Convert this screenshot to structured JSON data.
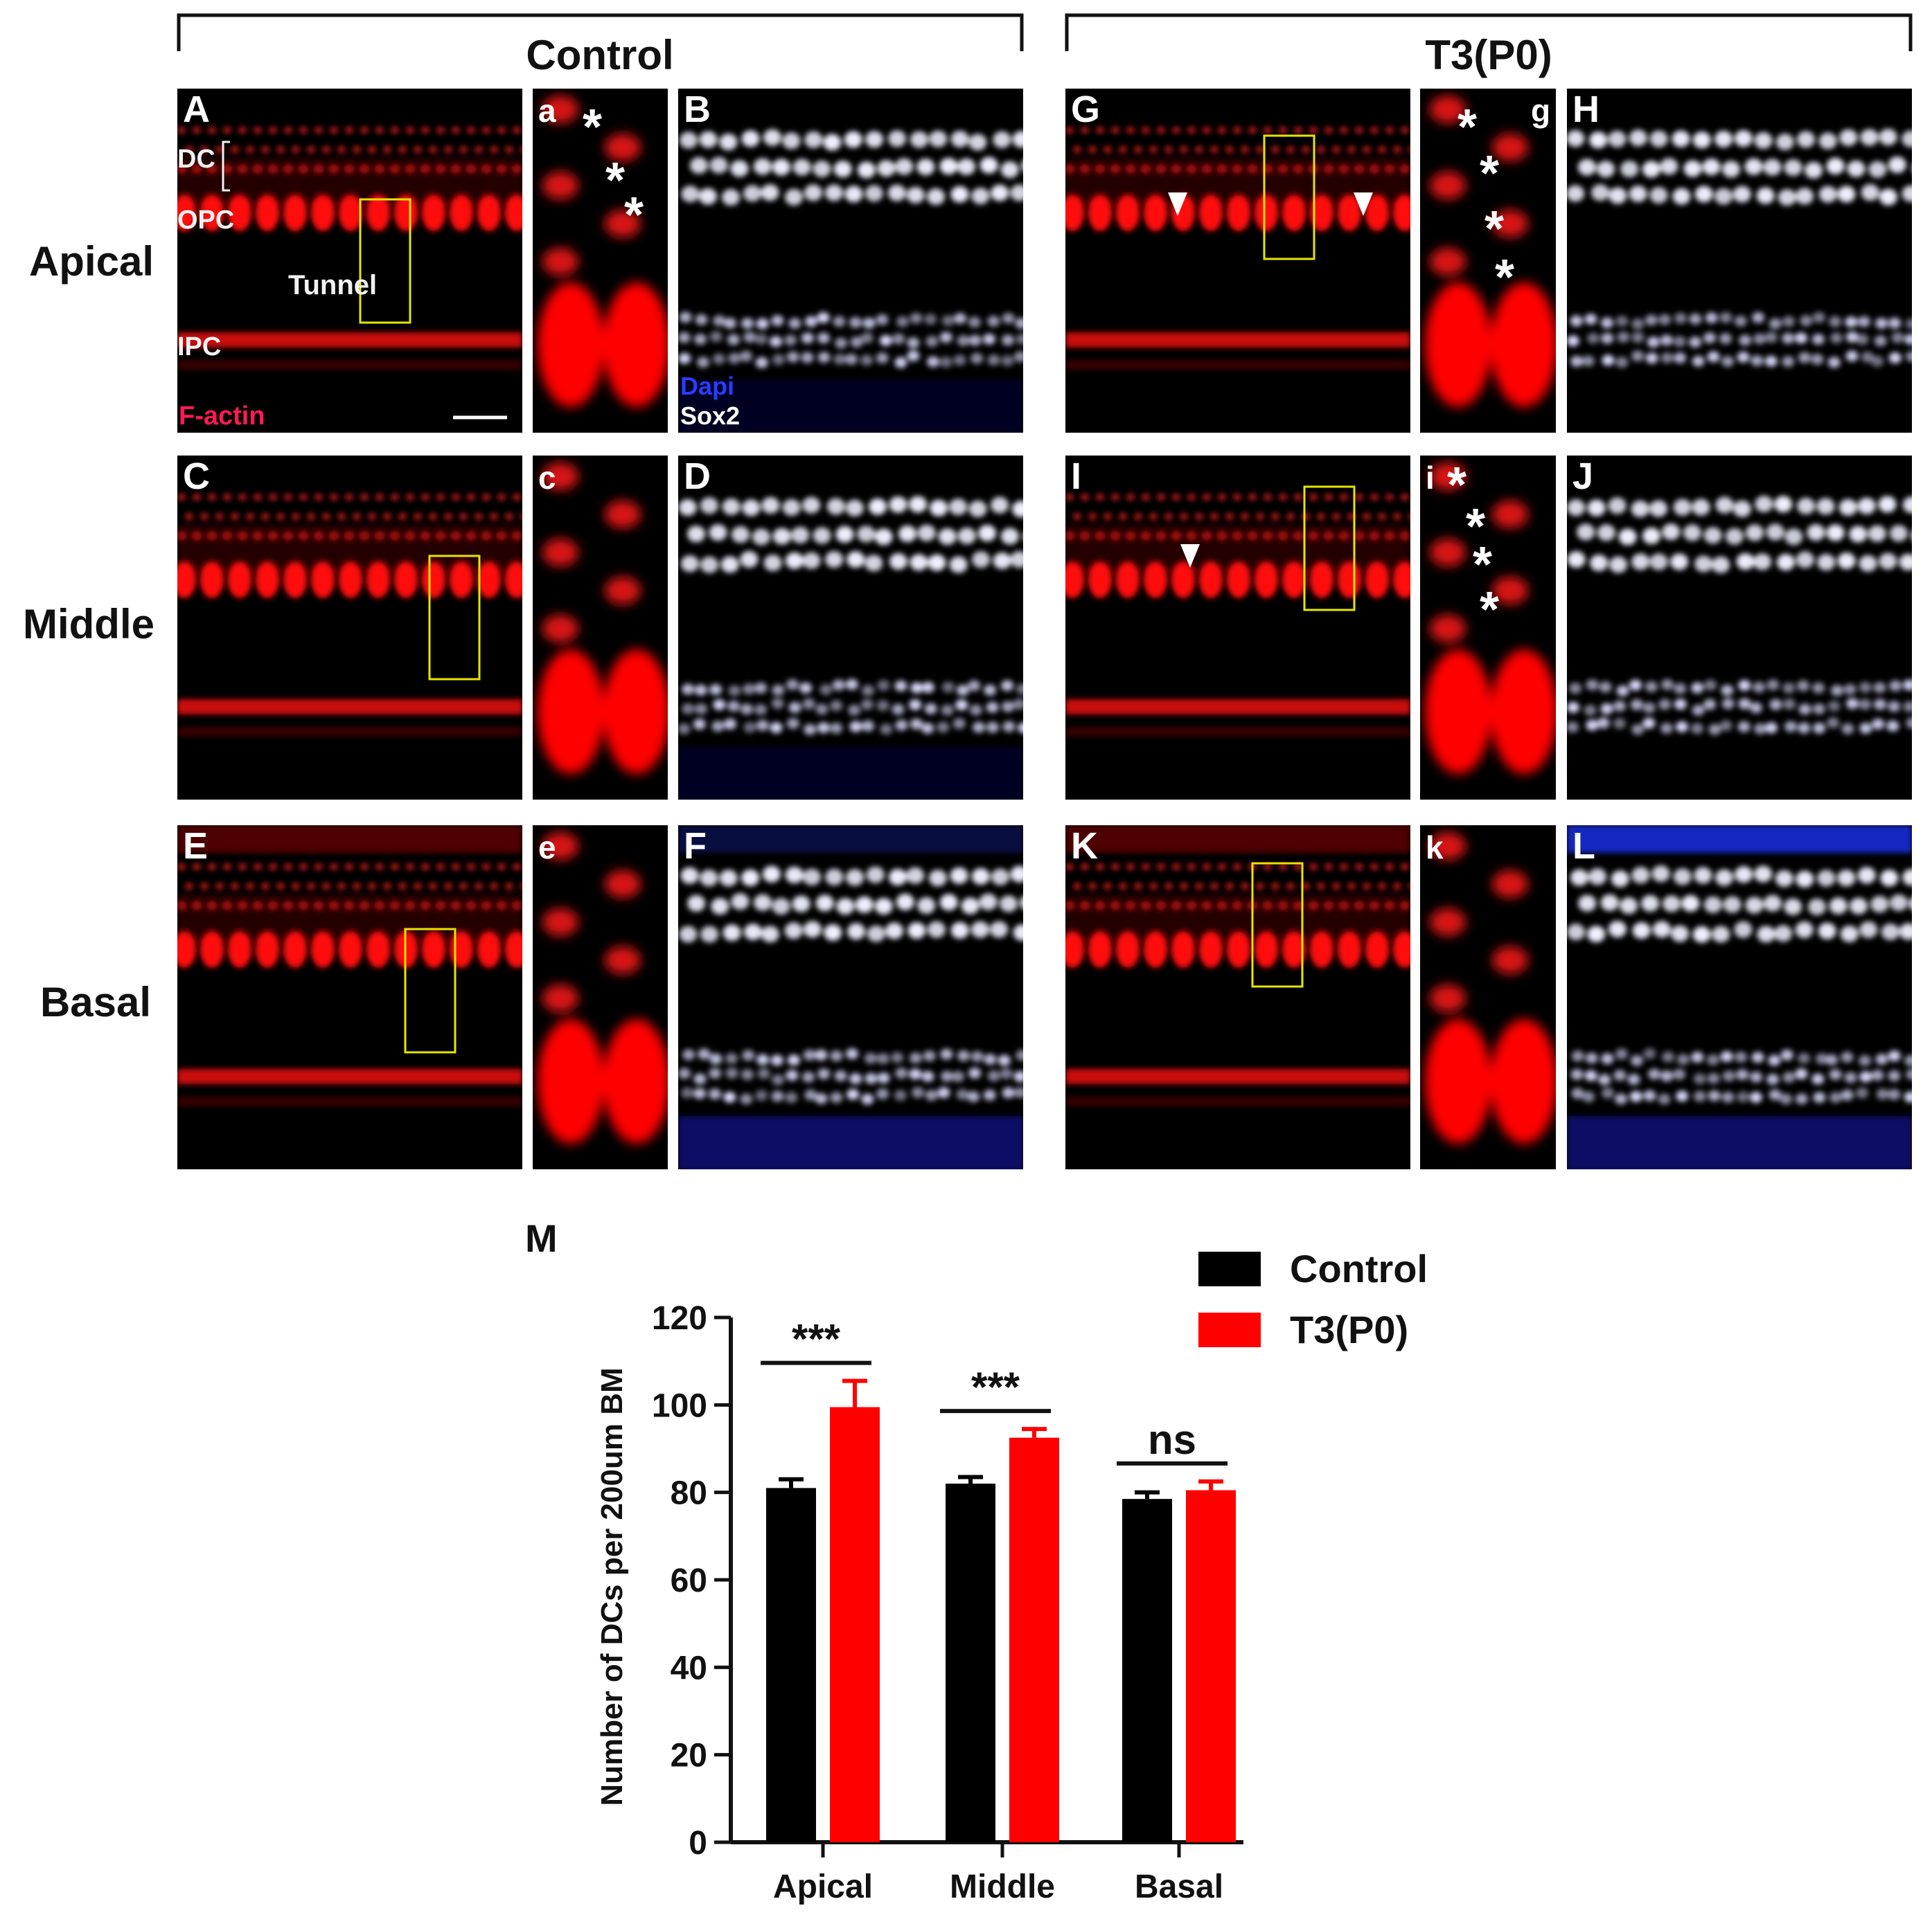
{
  "figure": {
    "group_titles": {
      "control": "Control",
      "t3": "T3(P0)"
    },
    "row_labels": {
      "apical": "Apical",
      "middle": "Middle",
      "basal": "Basal"
    },
    "panel_letters": {
      "A": "A",
      "a": "a",
      "B": "B",
      "C": "C",
      "c": "c",
      "D": "D",
      "E": "E",
      "e": "e",
      "F": "F",
      "G": "G",
      "g": "g",
      "H": "H",
      "I": "I",
      "i": "i",
      "J": "J",
      "K": "K",
      "k": "k",
      "L": "L",
      "M": "M"
    },
    "annotations": {
      "dc": "DC",
      "opc": "OPC",
      "tunnel": "Tunnel",
      "ipc": "IPC",
      "factin": "F-actin",
      "dapi": "Dapi",
      "sox2": "Sox2",
      "asterisk": "*"
    },
    "colors": {
      "factin": "#ff1a1a",
      "sox2": "#ffffff",
      "dapi": "#1a2bd6",
      "roi_box": "#e6e600"
    }
  },
  "chart_data": {
    "type": "bar",
    "panel": "M",
    "categories": [
      "Apical",
      "Middle",
      "Basal"
    ],
    "series": [
      {
        "name": "Control",
        "color": "#000000",
        "values": [
          81,
          82,
          78.5
        ],
        "errors": [
          2,
          1.5,
          1.5
        ]
      },
      {
        "name": "T3(P0)",
        "color": "#ff0000",
        "values": [
          99.5,
          92.5,
          80.5
        ],
        "errors": [
          6,
          2,
          2
        ]
      }
    ],
    "significance": [
      "***",
      "***",
      "ns"
    ],
    "ylabel": "Number of DCs  per 200um BM",
    "xlabel": "",
    "ylim": [
      0,
      120
    ],
    "yticks": [
      0,
      20,
      40,
      60,
      80,
      100,
      120
    ],
    "legend_position": "top-right",
    "grid": false
  }
}
